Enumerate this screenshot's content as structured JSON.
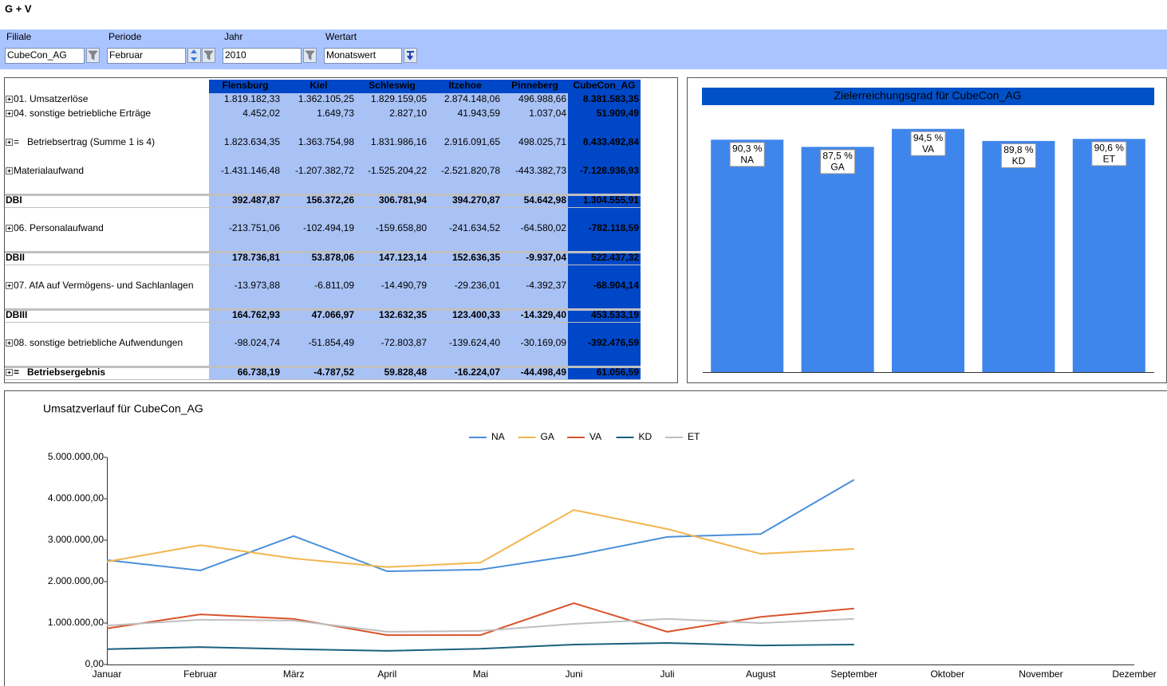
{
  "header": {
    "title": "G + V"
  },
  "filters": [
    {
      "label": "Filiale",
      "value": "CubeCon_AG"
    },
    {
      "label": "Periode",
      "value": "Februar"
    },
    {
      "label": "Jahr",
      "value": "2010"
    },
    {
      "label": "Wertart",
      "value": "Monatswert"
    }
  ],
  "table": {
    "columns": [
      "Flensburg",
      "Kiel",
      "Schleswig",
      "Itzehoe",
      "Pinneberg",
      "CubeCon_AG"
    ],
    "rows": [
      {
        "label": "01. Umsatzerlöse",
        "expandable": true,
        "values": [
          "1.819.182,33",
          "1.362.105,25",
          "1.829.159,05",
          "2.874.148,06",
          "496.988,66",
          "8.381.583,35"
        ]
      },
      {
        "label": "04. sonstige betriebliche Erträge",
        "expandable": true,
        "values": [
          "4.452,02",
          "1.649,73",
          "2.827,10",
          "41.943,59",
          "1.037,04",
          "51.909,49"
        ]
      },
      {
        "label": "=   Betriebsertrag (Summe 1 is 4)",
        "expandable": true,
        "values": [
          "1.823.634,35",
          "1.363.754,98",
          "1.831.986,16",
          "2.916.091,65",
          "498.025,71",
          "8.433.492,84"
        ]
      },
      {
        "label": "Materialaufwand",
        "expandable": true,
        "values": [
          "-1.431.146,48",
          "-1.207.382,72",
          "-1.525.204,22",
          "-2.521.820,78",
          "-443.382,73",
          "-7.128.936,93"
        ]
      },
      {
        "label": "DBI",
        "bold": true,
        "values": [
          "392.487,87",
          "156.372,26",
          "306.781,94",
          "394.270,87",
          "54.642,98",
          "1.304.555,91"
        ]
      },
      {
        "label": "06. Personalaufwand",
        "expandable": true,
        "values": [
          "-213.751,06",
          "-102.494,19",
          "-159.658,80",
          "-241.634,52",
          "-64.580,02",
          "-782.118,59"
        ]
      },
      {
        "label": "DBII",
        "bold": true,
        "values": [
          "178.736,81",
          "53.878,06",
          "147.123,14",
          "152.636,35",
          "-9.937,04",
          "522.437,32"
        ]
      },
      {
        "label": "07. AfA auf Vermögens- und Sachlanlagen",
        "expandable": true,
        "values": [
          "-13.973,88",
          "-6.811,09",
          "-14.490,79",
          "-29.236,01",
          "-4.392,37",
          "-68.904,14"
        ]
      },
      {
        "label": "DBIII",
        "bold": true,
        "values": [
          "164.762,93",
          "47.066,97",
          "132.632,35",
          "123.400,33",
          "-14.329,40",
          "453.533,19"
        ]
      },
      {
        "label": "08. sonstige betriebliche Aufwendungen",
        "expandable": true,
        "values": [
          "-98.024,74",
          "-51.854,49",
          "-72.803,87",
          "-139.624,40",
          "-30.169,09",
          "-392.476,59"
        ]
      },
      {
        "label": "=   Betriebsergebnis",
        "expandable": true,
        "bold": true,
        "values": [
          "66.738,19",
          "-4.787,52",
          "59.828,48",
          "-16.224,07",
          "-44.498,49",
          "61.056,59"
        ]
      }
    ]
  },
  "chart_data": [
    {
      "type": "bar",
      "title": "Zielerreichungsgrad für CubeCon_AG",
      "categories": [
        "NA",
        "GA",
        "VA",
        "KD",
        "ET"
      ],
      "values": [
        90.3,
        87.5,
        94.5,
        89.8,
        90.6
      ],
      "value_labels": [
        "90,3 %",
        "87,5 %",
        "94,5 %",
        "89,8 %",
        "90,6 %"
      ],
      "color": "#3f86ec",
      "ylim": [
        0,
        100
      ]
    },
    {
      "type": "line",
      "title": "Umsatzverlauf für CubeCon_AG",
      "categories": [
        "Januar",
        "Februar",
        "März",
        "April",
        "Mai",
        "Juni",
        "Juli",
        "August",
        "September",
        "Oktober",
        "November",
        "Dezember"
      ],
      "series": [
        {
          "name": "NA",
          "color": "#4a90d9",
          "values": [
            2520000,
            2270000,
            3100000,
            2250000,
            2290000,
            2630000,
            3080000,
            3150000,
            4460000,
            null,
            null,
            null
          ]
        },
        {
          "name": "GA",
          "color": "#f2b64f",
          "values": [
            2480000,
            2880000,
            2560000,
            2350000,
            2460000,
            3730000,
            3270000,
            2670000,
            2790000,
            null,
            null,
            null
          ]
        },
        {
          "name": "VA",
          "color": "#d9542b",
          "values": [
            870000,
            1210000,
            1100000,
            710000,
            710000,
            1480000,
            790000,
            1150000,
            1350000,
            null,
            null,
            null
          ]
        },
        {
          "name": "KD",
          "color": "#1b607e",
          "values": [
            370000,
            420000,
            370000,
            330000,
            380000,
            480000,
            520000,
            460000,
            480000,
            null,
            null,
            null
          ]
        },
        {
          "name": "ET",
          "color": "#bfbfbf",
          "values": [
            940000,
            1080000,
            1060000,
            790000,
            810000,
            980000,
            1100000,
            1000000,
            1100000,
            null,
            null,
            null
          ]
        }
      ],
      "ylim": [
        0,
        5000000
      ],
      "yticks": [
        {
          "value": 0,
          "label": "0,00"
        },
        {
          "value": 1000000,
          "label": "1.000.000,00"
        },
        {
          "value": 2000000,
          "label": "2.000.000,00"
        },
        {
          "value": 3000000,
          "label": "3.000.000,00"
        },
        {
          "value": 4000000,
          "label": "4.000.000,00"
        },
        {
          "value": 5000000,
          "label": "5.000.000,00"
        }
      ],
      "legend": "top"
    }
  ]
}
